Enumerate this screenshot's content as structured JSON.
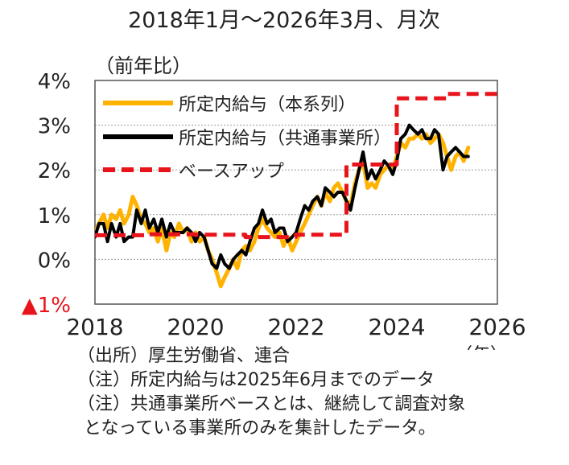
{
  "chart_data": {
    "type": "line",
    "title": "2018年1月～2026年3月、月次",
    "ylabel": "（前年比）",
    "xlabel": "（年）",
    "xlim": [
      2018,
      2026
    ],
    "ylim": [
      -1,
      4
    ],
    "yticks": [
      {
        "value": 4,
        "label": "4%"
      },
      {
        "value": 3,
        "label": "3%"
      },
      {
        "value": 2,
        "label": "2%"
      },
      {
        "value": 1,
        "label": "1%"
      },
      {
        "value": 0,
        "label": "0%"
      },
      {
        "value": -1,
        "label": "▲1%"
      }
    ],
    "xticks": [
      {
        "value": 2018,
        "label": "2018"
      },
      {
        "value": 2020,
        "label": "2020"
      },
      {
        "value": 2022,
        "label": "2022"
      },
      {
        "value": 2024,
        "label": "2024"
      },
      {
        "value": 2026,
        "label": "2026"
      }
    ],
    "legend_position": "top-left",
    "series": [
      {
        "name": "所定内給与（本系列）",
        "color": "#ffb300",
        "style": "solid",
        "x": [
          2018.0,
          2018.08,
          2018.17,
          2018.25,
          2018.33,
          2018.42,
          2018.5,
          2018.58,
          2018.67,
          2018.75,
          2018.83,
          2018.92,
          2019.0,
          2019.08,
          2019.17,
          2019.25,
          2019.33,
          2019.42,
          2019.5,
          2019.58,
          2019.67,
          2019.75,
          2019.83,
          2019.92,
          2020.0,
          2020.08,
          2020.17,
          2020.25,
          2020.33,
          2020.42,
          2020.5,
          2020.58,
          2020.67,
          2020.75,
          2020.83,
          2020.92,
          2021.0,
          2021.08,
          2021.17,
          2021.25,
          2021.33,
          2021.42,
          2021.5,
          2021.58,
          2021.67,
          2021.75,
          2021.83,
          2021.92,
          2022.0,
          2022.08,
          2022.17,
          2022.25,
          2022.33,
          2022.42,
          2022.5,
          2022.58,
          2022.67,
          2022.75,
          2022.83,
          2022.92,
          2023.0,
          2023.08,
          2023.17,
          2023.25,
          2023.33,
          2023.42,
          2023.5,
          2023.58,
          2023.67,
          2023.75,
          2023.83,
          2023.92,
          2024.0,
          2024.08,
          2024.17,
          2024.25,
          2024.33,
          2024.42,
          2024.5,
          2024.58,
          2024.67,
          2024.75,
          2024.83,
          2024.92,
          2025.0,
          2025.08,
          2025.17,
          2025.25,
          2025.33,
          2025.42
        ],
        "values": [
          0.6,
          0.8,
          1.0,
          0.7,
          1.0,
          0.9,
          1.1,
          0.8,
          1.0,
          1.4,
          1.2,
          0.9,
          0.8,
          0.6,
          0.7,
          0.4,
          0.7,
          0.2,
          0.6,
          0.5,
          0.8,
          0.6,
          0.7,
          0.4,
          0.6,
          0.4,
          0.5,
          0.2,
          0.0,
          -0.3,
          -0.6,
          -0.4,
          -0.2,
          0.0,
          -0.2,
          0.2,
          0.3,
          0.2,
          0.4,
          0.7,
          0.9,
          0.7,
          0.6,
          0.5,
          0.6,
          0.3,
          0.5,
          0.2,
          0.4,
          0.6,
          0.8,
          1.0,
          1.2,
          1.4,
          1.2,
          1.5,
          1.3,
          1.6,
          1.7,
          1.5,
          1.3,
          1.2,
          1.7,
          2.0,
          2.2,
          1.6,
          1.7,
          1.6,
          1.9,
          2.0,
          2.1,
          2.0,
          2.3,
          2.6,
          2.5,
          2.7,
          2.7,
          2.8,
          2.7,
          2.8,
          2.6,
          2.7,
          2.8,
          2.6,
          2.3,
          2.0,
          2.3,
          2.4,
          2.2,
          2.5
        ]
      },
      {
        "name": "所定内給与（共通事業所）",
        "color": "#000000",
        "style": "solid",
        "x": [
          2018.0,
          2018.08,
          2018.17,
          2018.25,
          2018.33,
          2018.42,
          2018.5,
          2018.58,
          2018.67,
          2018.75,
          2018.83,
          2018.92,
          2019.0,
          2019.08,
          2019.17,
          2019.25,
          2019.33,
          2019.42,
          2019.5,
          2019.58,
          2019.67,
          2019.75,
          2019.83,
          2019.92,
          2020.0,
          2020.08,
          2020.17,
          2020.25,
          2020.33,
          2020.42,
          2020.5,
          2020.58,
          2020.67,
          2020.75,
          2020.83,
          2020.92,
          2021.0,
          2021.08,
          2021.17,
          2021.25,
          2021.33,
          2021.42,
          2021.5,
          2021.58,
          2021.67,
          2021.75,
          2021.83,
          2021.92,
          2022.0,
          2022.08,
          2022.17,
          2022.25,
          2022.33,
          2022.42,
          2022.5,
          2022.58,
          2022.67,
          2022.75,
          2022.83,
          2022.92,
          2023.0,
          2023.08,
          2023.17,
          2023.25,
          2023.33,
          2023.42,
          2023.5,
          2023.58,
          2023.67,
          2023.75,
          2023.83,
          2023.92,
          2024.0,
          2024.08,
          2024.17,
          2024.25,
          2024.33,
          2024.42,
          2024.5,
          2024.58,
          2024.67,
          2024.75,
          2024.83,
          2024.92,
          2025.0,
          2025.08,
          2025.17,
          2025.25,
          2025.33,
          2025.42
        ],
        "values": [
          0.5,
          0.8,
          0.8,
          0.4,
          0.8,
          0.5,
          0.8,
          0.4,
          0.5,
          0.5,
          1.1,
          0.8,
          1.1,
          0.7,
          0.9,
          0.6,
          0.9,
          0.5,
          0.8,
          0.6,
          0.6,
          0.6,
          0.7,
          0.6,
          0.4,
          0.6,
          0.5,
          0.2,
          -0.1,
          -0.2,
          0.1,
          -0.1,
          -0.2,
          0.0,
          0.1,
          0.2,
          0.1,
          0.4,
          0.7,
          0.8,
          1.1,
          0.8,
          0.9,
          0.6,
          0.7,
          0.7,
          0.4,
          0.5,
          0.6,
          0.9,
          1.2,
          1.1,
          1.3,
          1.4,
          1.2,
          1.6,
          1.5,
          1.4,
          1.5,
          1.5,
          1.3,
          1.1,
          1.6,
          2.0,
          2.4,
          1.8,
          2.0,
          1.8,
          2.0,
          2.2,
          2.1,
          1.9,
          2.2,
          2.7,
          2.8,
          3.0,
          2.9,
          2.8,
          2.9,
          2.7,
          2.7,
          2.9,
          2.8,
          2.0,
          2.3,
          2.4,
          2.5,
          2.4,
          2.3,
          2.3
        ]
      },
      {
        "name": "ベースアップ",
        "color": "#e8141b",
        "style": "dashed",
        "x": [
          2018.0,
          2018.99,
          2018.99,
          2019.99,
          2019.99,
          2020.99,
          2020.99,
          2021.99,
          2021.99,
          2023.0,
          2023.0,
          2024.0,
          2024.0,
          2025.0,
          2025.0,
          2026.0
        ],
        "values": [
          0.54,
          0.54,
          0.56,
          0.56,
          0.55,
          0.55,
          0.5,
          0.5,
          0.55,
          0.55,
          2.12,
          2.12,
          3.6,
          3.6,
          3.7,
          3.7
        ]
      }
    ]
  },
  "notes": {
    "source": "（出所）厚生労働省、連合",
    "note1": "（注）所定内給与は2025年6月までのデータ",
    "note2": "（注）共通事業所ベースとは、継続して調査対象",
    "note3": "となっている事業所のみを集計したデータ。"
  },
  "colors": {
    "base_pay": "#e8141b",
    "standard": "#ffb300",
    "common": "#000000",
    "negative_tick": "#e8141b"
  }
}
